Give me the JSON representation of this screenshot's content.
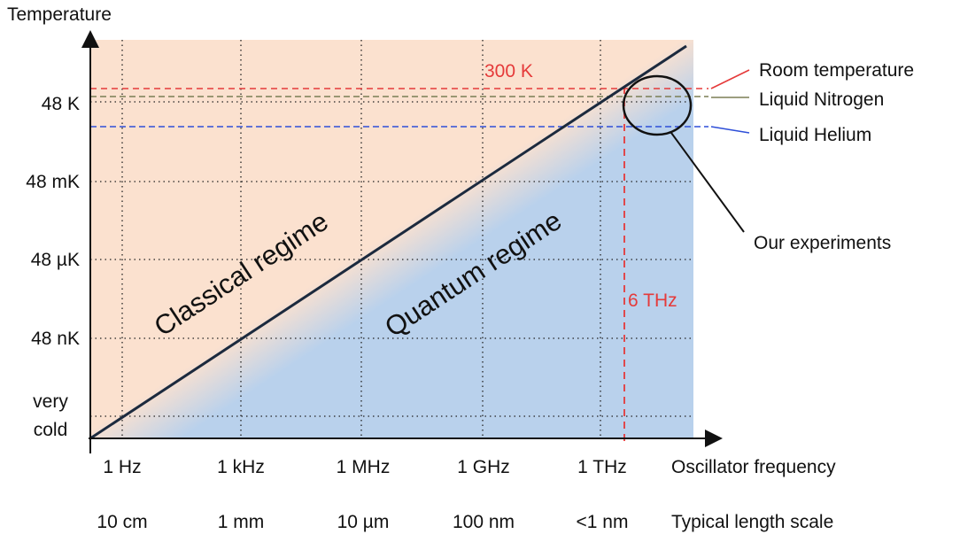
{
  "axis": {
    "y_title": "Temperature",
    "x_title": "Oscillator frequency",
    "x2_title": "Typical length scale"
  },
  "y_labels": [
    "48 K",
    "48 mK",
    "48 µK",
    "48 nK"
  ],
  "y_bottom_label": [
    "very",
    "cold"
  ],
  "x_labels": [
    "1 Hz",
    "1 kHz",
    "1 MHz",
    "1 GHz",
    "1 THz"
  ],
  "length_labels": [
    "10 cm",
    "1 mm",
    "10 µm",
    "100 nm",
    "<1 nm"
  ],
  "regions": {
    "classical": "Classical regime",
    "quantum": "Quantum regime"
  },
  "markers": {
    "temperature": "300 K",
    "frequency": "6 THz"
  },
  "legend": [
    "Room temperature",
    "Liquid Nitrogen",
    "Liquid Helium"
  ],
  "callout": "Our experiments"
}
